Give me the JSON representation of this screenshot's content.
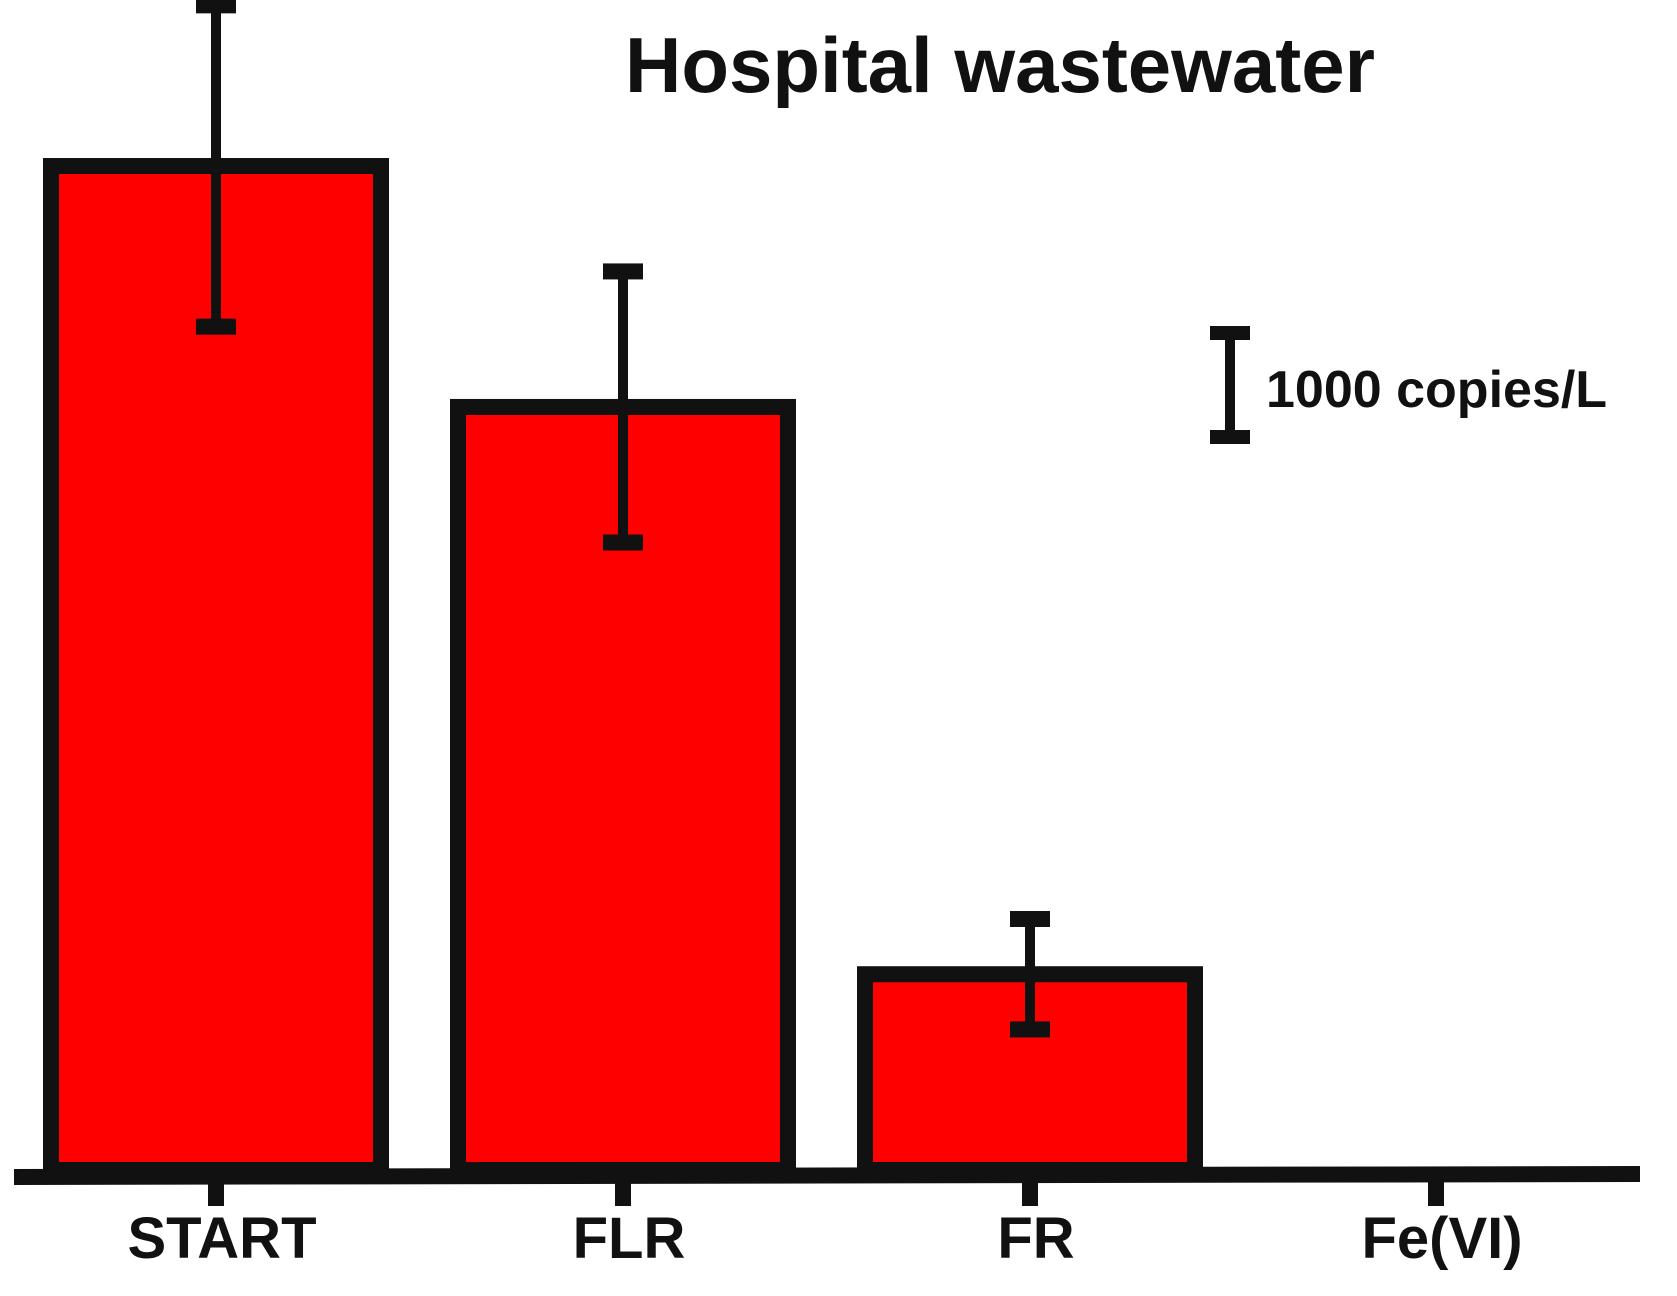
{
  "chart_data": {
    "type": "bar",
    "title": "Hospital wastewater",
    "categories": [
      "START",
      "FLR",
      "FR",
      "Fe(VI)"
    ],
    "values": [
      10000,
      7600,
      1950,
      0
    ],
    "errors": [
      1600,
      1350,
      550,
      0
    ],
    "scale_bar": {
      "value": 1000,
      "label": "1000 copies/L"
    },
    "ylim": [
      0,
      10000
    ],
    "grid": false,
    "xlabel": "",
    "ylabel": "",
    "colors": {
      "bar_fill": "#ff0000",
      "outline": "#111111",
      "background": "#ffffff"
    }
  }
}
